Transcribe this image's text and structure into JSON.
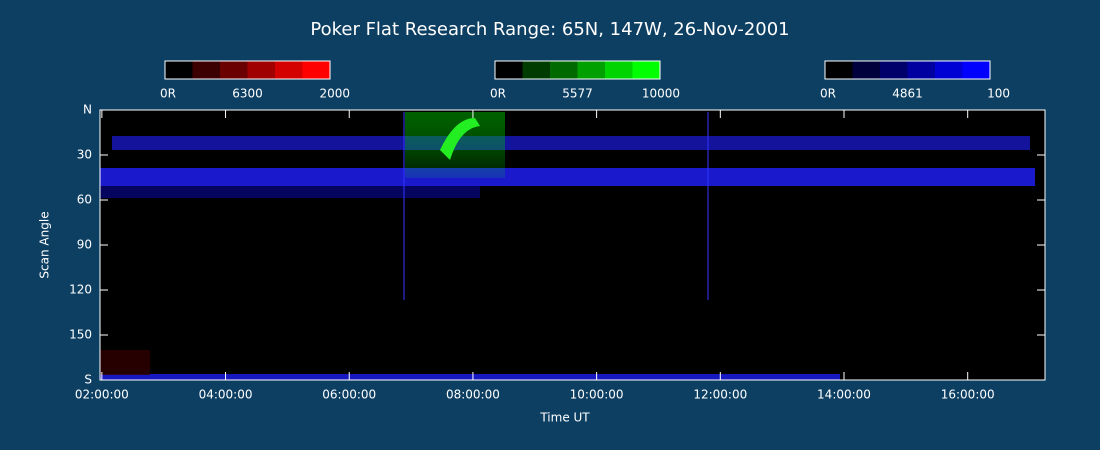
{
  "chart_data": {
    "type": "keogram",
    "title": "Poker Flat Research Range: 65N, 147W, 26-Nov-2001",
    "x_label": "Time UT",
    "y_label": "Scan Angle",
    "xlim": [
      1.97,
      17.25
    ],
    "xticks": [
      {
        "value": 2,
        "label": "02:00:00"
      },
      {
        "value": 4,
        "label": "04:00:00"
      },
      {
        "value": 6,
        "label": "06:00:00"
      },
      {
        "value": 8,
        "label": "08:00:00"
      },
      {
        "value": 10,
        "label": "10:00:00"
      },
      {
        "value": 12,
        "label": "12:00:00"
      },
      {
        "value": 14,
        "label": "14:00:00"
      },
      {
        "value": 16,
        "label": "16:00:00"
      }
    ],
    "ylim": [
      0,
      180
    ],
    "yticks": [
      {
        "value": 0,
        "label": "N"
      },
      30,
      60,
      90,
      120,
      150,
      {
        "value": 180,
        "label": "S"
      }
    ],
    "colorbars": [
      {
        "min_label": "0R",
        "name": "6300",
        "max": 2000,
        "colors": [
          "#000000",
          "#3c0000",
          "#6a0000",
          "#a00000",
          "#d40000",
          "#ff0000"
        ]
      },
      {
        "min_label": "0R",
        "name": "5577",
        "max": 10000,
        "colors": [
          "#000000",
          "#003c00",
          "#006a00",
          "#00a000",
          "#00d400",
          "#00ff00"
        ]
      },
      {
        "min_label": "0R",
        "name": "4861",
        "max": 100,
        "colors": [
          "#000000",
          "#00003c",
          "#00006a",
          "#0000a0",
          "#0000d4",
          "#0000ff"
        ]
      }
    ]
  }
}
